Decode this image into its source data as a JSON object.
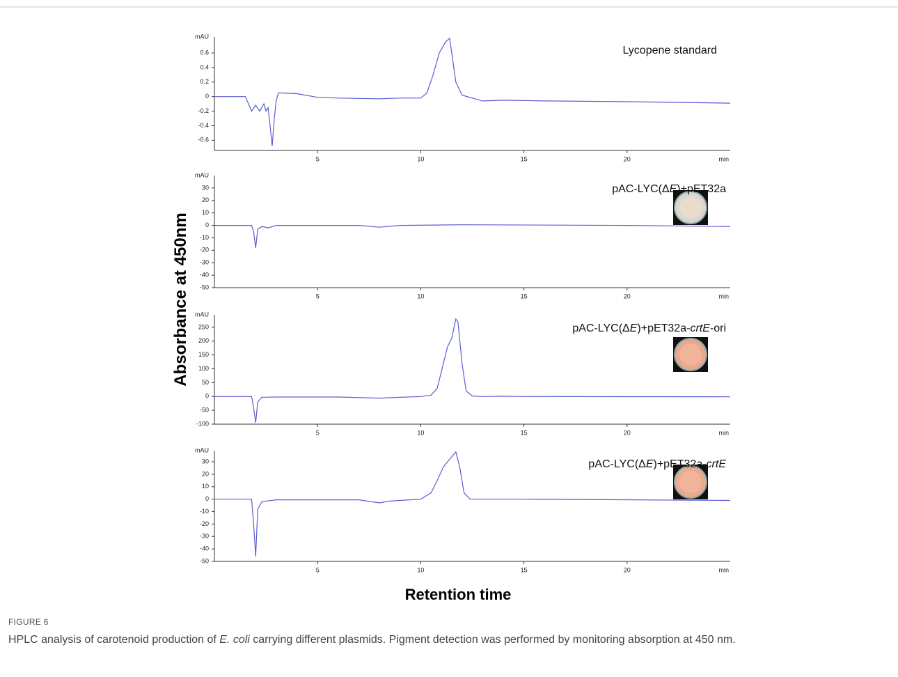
{
  "figure": {
    "y_label": "Absorbance at 450nm",
    "x_label": "Retention time",
    "label": "FIGURE 6",
    "caption": [
      "HPLC analysis of carotenoid production of ",
      "E. coli",
      " carrying different plasmids. Pigment detection was performed by monitoring absorption at 450 nm."
    ]
  },
  "chart_data": [
    {
      "type": "line",
      "title": [
        "Lycopene standard"
      ],
      "y_unit": "mAU",
      "x_unit": "min",
      "color": "#5b5bd6",
      "xlim": [
        0,
        25
      ],
      "xticks": [
        5,
        10,
        15,
        20
      ],
      "ylim": [
        -0.74,
        0.82
      ],
      "yticks": [
        -0.6,
        -0.4,
        -0.2,
        0,
        0.2,
        0.4,
        0.6
      ],
      "x": [
        0,
        1.5,
        1.8,
        2.0,
        2.2,
        2.4,
        2.5,
        2.6,
        2.7,
        2.8,
        2.9,
        3.0,
        3.1,
        3.3,
        4,
        5,
        6,
        8,
        9,
        10,
        10.3,
        10.6,
        10.9,
        11.2,
        11.4,
        11.5,
        11.7,
        12,
        12.5,
        13,
        14,
        16,
        20,
        25
      ],
      "values": [
        0,
        0,
        -0.2,
        -0.12,
        -0.2,
        -0.1,
        -0.2,
        -0.15,
        -0.4,
        -0.68,
        -0.3,
        -0.05,
        0.05,
        0.05,
        0.04,
        -0.01,
        -0.02,
        -0.03,
        -0.02,
        -0.02,
        0.05,
        0.3,
        0.6,
        0.75,
        0.8,
        0.6,
        0.2,
        0.02,
        -0.02,
        -0.06,
        -0.05,
        -0.06,
        -0.07,
        -0.09
      ]
    },
    {
      "type": "line",
      "title": [
        "pAC-LYC(Δ",
        "E",
        ")+pET32a"
      ],
      "y_unit": "mAU",
      "x_unit": "min",
      "color": "#5b5bd6",
      "xlim": [
        0,
        25
      ],
      "xticks": [
        5,
        10,
        15,
        20
      ],
      "ylim": [
        -50,
        40
      ],
      "yticks": [
        -50,
        -40,
        -30,
        -20,
        -10,
        0,
        10,
        20,
        30
      ],
      "x": [
        0,
        1.8,
        1.9,
        2.0,
        2.1,
        2.3,
        2.6,
        3,
        7,
        8,
        9,
        12,
        20,
        25
      ],
      "values": [
        0,
        0,
        -5,
        -18,
        -3,
        -1,
        -2,
        0,
        0,
        -1.5,
        0,
        0.5,
        0,
        -1
      ]
    },
    {
      "type": "line",
      "title": [
        "pAC-LYC(Δ",
        "E",
        ")+pET32a-",
        "crtE",
        "-ori"
      ],
      "y_unit": "mAU",
      "x_unit": "min",
      "color": "#5b5bd6",
      "xlim": [
        0,
        25
      ],
      "xticks": [
        5,
        10,
        15,
        20
      ],
      "ylim": [
        -100,
        295
      ],
      "yticks": [
        -100,
        -50,
        0,
        50,
        100,
        150,
        200,
        250
      ],
      "x": [
        0,
        1.8,
        1.9,
        2.0,
        2.1,
        2.3,
        3,
        6,
        8,
        9,
        10,
        10.5,
        10.8,
        11.1,
        11.3,
        11.5,
        11.7,
        11.8,
        12.0,
        12.2,
        12.5,
        13,
        14,
        15,
        25
      ],
      "values": [
        0,
        0,
        -40,
        -95,
        -20,
        -3,
        -2,
        -2,
        -6,
        -3,
        0,
        5,
        30,
        120,
        180,
        210,
        280,
        270,
        120,
        20,
        2,
        0,
        1,
        0,
        -1
      ]
    },
    {
      "type": "line",
      "title": [
        "pAC-LYC(Δ",
        "E",
        ")+pET32a-",
        "crtE"
      ],
      "y_unit": "mAU",
      "x_unit": "min",
      "color": "#5b5bd6",
      "xlim": [
        0,
        25
      ],
      "xticks": [
        5,
        10,
        15,
        20
      ],
      "ylim": [
        -50,
        39
      ],
      "yticks": [
        -50,
        -40,
        -30,
        -20,
        -10,
        0,
        10,
        20,
        30
      ],
      "x": [
        0,
        1.8,
        1.9,
        2.0,
        2.1,
        2.3,
        3,
        7,
        8,
        8.5,
        9,
        10,
        10.5,
        10.8,
        11.1,
        11.4,
        11.6,
        11.7,
        11.9,
        12.1,
        12.4,
        15,
        25
      ],
      "values": [
        0,
        0,
        -20,
        -46,
        -8,
        -2,
        -0.5,
        -0.5,
        -3,
        -1.5,
        -1,
        0,
        5,
        15,
        26,
        32,
        36,
        38,
        25,
        5,
        0,
        0,
        -1
      ]
    }
  ]
}
